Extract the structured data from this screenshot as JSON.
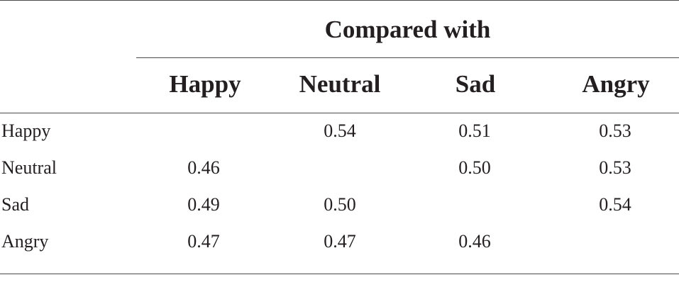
{
  "table": {
    "group_header": "Compared with",
    "columns": [
      "Happy",
      "Neutral",
      "Sad",
      "Angry"
    ],
    "rows": [
      {
        "label": "Happy",
        "values": [
          "",
          "0.54",
          "0.51",
          "0.53"
        ]
      },
      {
        "label": "Neutral",
        "values": [
          "0.46",
          "",
          "0.50",
          "0.53"
        ]
      },
      {
        "label": "Sad",
        "values": [
          "0.49",
          "0.50",
          "",
          "0.54"
        ]
      },
      {
        "label": "Angry",
        "values": [
          "0.47",
          "0.47",
          "0.46",
          ""
        ]
      }
    ]
  }
}
